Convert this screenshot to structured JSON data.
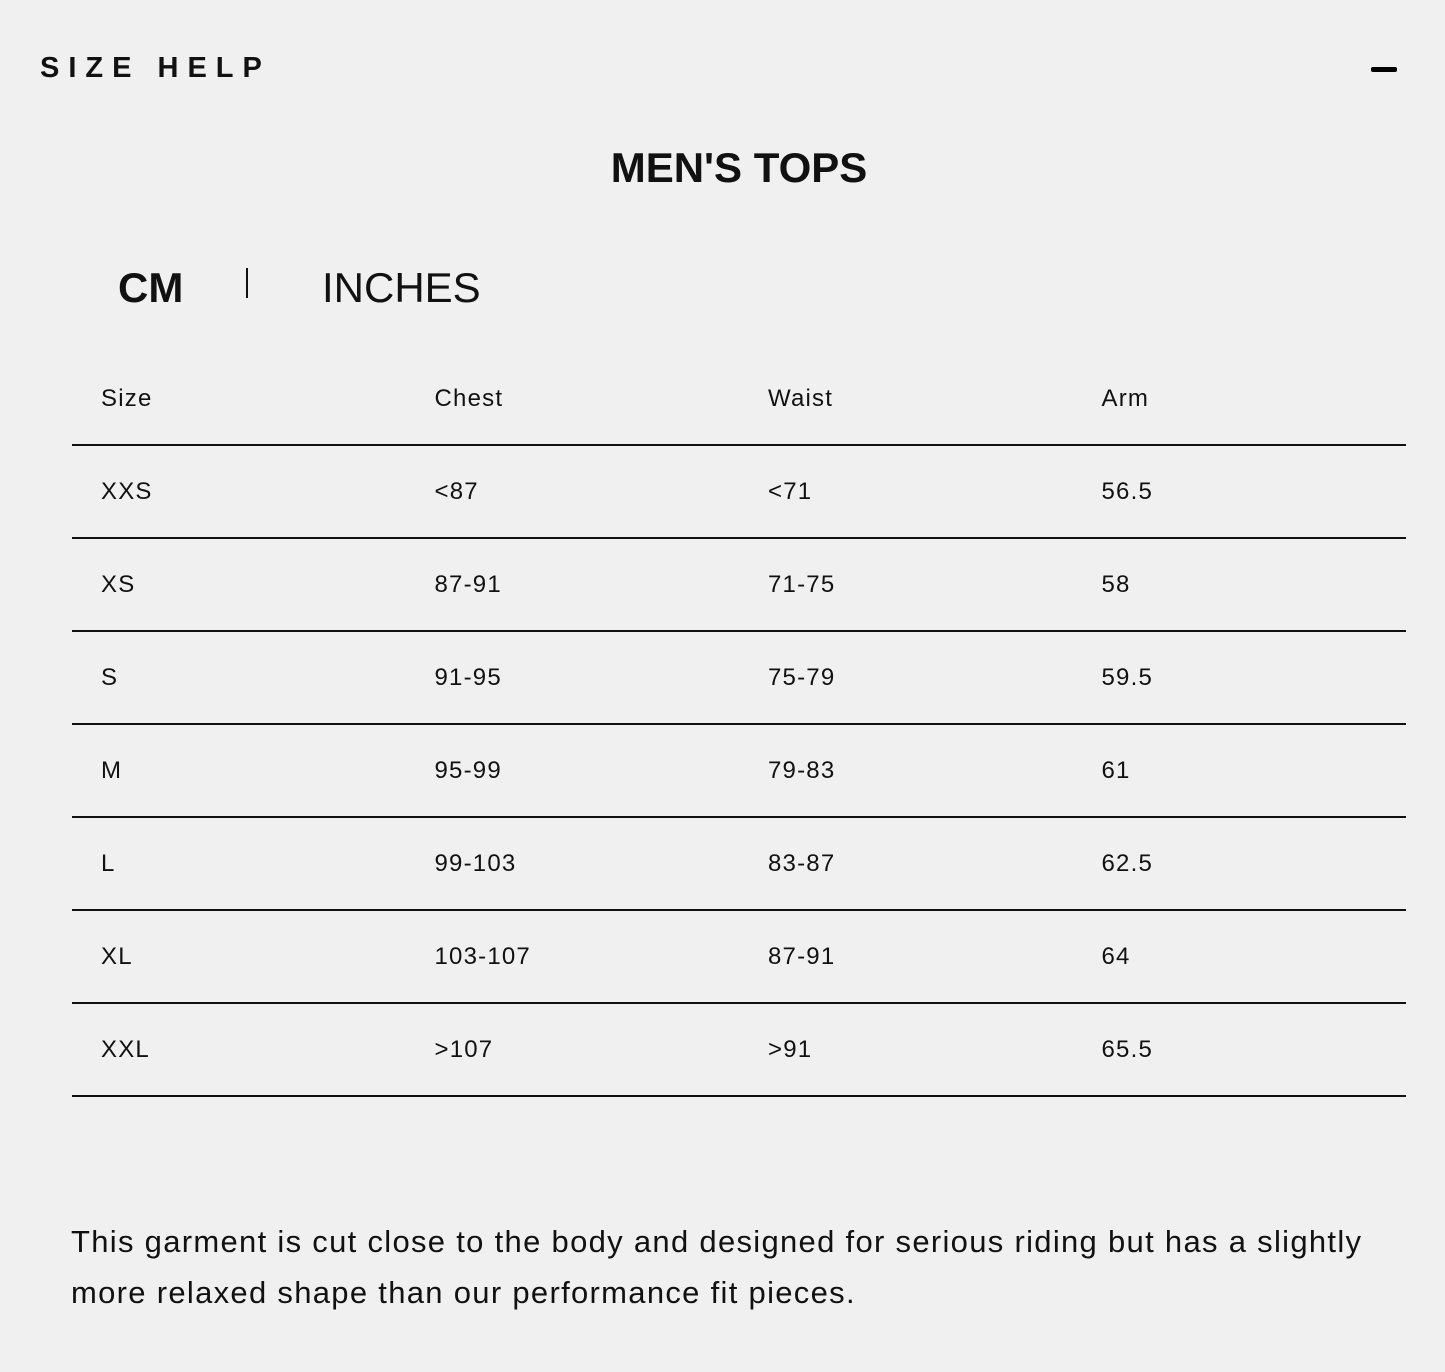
{
  "panel": {
    "title": "SIZE HELP",
    "collapse_icon": "minus-icon"
  },
  "heading": "MEN'S TOPS",
  "units": {
    "options": [
      "CM",
      "INCHES"
    ],
    "selected": "CM"
  },
  "table": {
    "columns": [
      "Size",
      "Chest",
      "Waist",
      "Arm"
    ],
    "rows": [
      [
        "XXS",
        "<87",
        "<71",
        "56.5"
      ],
      [
        "XS",
        "87-91",
        "71-75",
        "58"
      ],
      [
        "S",
        "91-95",
        "75-79",
        "59.5"
      ],
      [
        "M",
        "95-99",
        "79-83",
        "61"
      ],
      [
        "L",
        "99-103",
        "83-87",
        "62.5"
      ],
      [
        "XL",
        "103-107",
        "87-91",
        "64"
      ],
      [
        "XXL",
        ">107",
        ">91",
        "65.5"
      ]
    ]
  },
  "note": "This garment is cut close to the body and designed for serious riding but has a slightly more relaxed shape than our performance fit pieces."
}
